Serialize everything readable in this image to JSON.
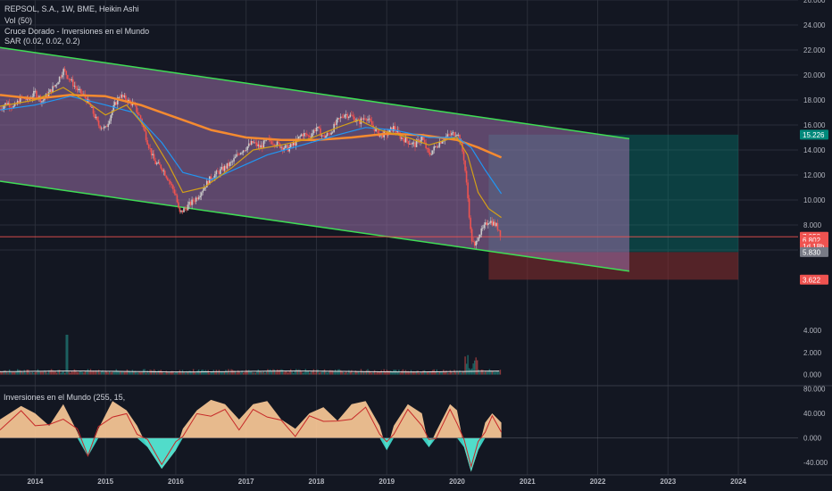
{
  "legend": {
    "symbol": "REPSOL, S.A., 1W, BME, Heikin Ashi",
    "vol": "Vol (50)",
    "indicator1": "Cruce Dorado - Inversiones en el Mundo",
    "indicator2": "SAR (0.02, 0.02, 0.2)",
    "oscillator": "Inversiones en el Mundo (255, 15,"
  },
  "colors": {
    "background": "#131722",
    "channel_line": "#3fdd55",
    "channel_fill": "#9a6fa8",
    "ema_fast": "#d4a017",
    "ema_mid": "#2196f3",
    "ema_slow": "#f58a30",
    "candle_up": "#c8c8c8",
    "candle_down": "#ef5350",
    "target_zone": "#00897b",
    "stop_zone": "#8b2e2e",
    "osc_positive": "#ffcc99",
    "osc_teal": "#40e0d0",
    "osc_green": "#4caf50"
  },
  "chart_data": {
    "type": "candlestick",
    "x_ticks": [
      "2014",
      "2015",
      "2016",
      "2017",
      "2018",
      "2019",
      "2020",
      "2021",
      "2022",
      "2023",
      "2024"
    ],
    "x_range": [
      2013.5,
      2024.85
    ],
    "price_axis": {
      "range": [
        3.0,
        26.0
      ],
      "ticks": [
        "26.000",
        "24.000",
        "22.000",
        "20.000",
        "18.000",
        "16.000",
        "14.000",
        "12.000",
        "10.000",
        "8.000",
        "6.000"
      ]
    },
    "price_tags": [
      {
        "label": "15.226",
        "value": 15.226,
        "color": "#00897b"
      },
      {
        "label": "7.058",
        "value": 7.058,
        "color": "#ef5350"
      },
      {
        "label": "6.802",
        "value": 6.802,
        "color": "#ef5350"
      },
      {
        "label": "1d 18h",
        "value": 6.28,
        "color": "#ef5350"
      },
      {
        "label": "5.830",
        "value": 5.83,
        "color": "#787b86"
      },
      {
        "label": "3.622",
        "value": 3.622,
        "color": "#ef5350"
      }
    ],
    "channel": {
      "upper": [
        [
          2013.5,
          22.2
        ],
        [
          2022.45,
          14.9
        ]
      ],
      "lower": [
        [
          2013.5,
          11.5
        ],
        [
          2022.45,
          4.3
        ]
      ]
    },
    "position": {
      "entry": 5.83,
      "target": 15.226,
      "stop": 3.622,
      "x_start": 2020.45,
      "x_end": 2024.0
    },
    "current_price_line": 7.058,
    "price_series": [
      [
        2013.5,
        17.3
      ],
      [
        2013.6,
        17.8
      ],
      [
        2013.7,
        17.4
      ],
      [
        2013.8,
        18.2
      ],
      [
        2013.9,
        18.0
      ],
      [
        2014.0,
        18.6
      ],
      [
        2014.1,
        17.9
      ],
      [
        2014.2,
        18.6
      ],
      [
        2014.3,
        19.3
      ],
      [
        2014.4,
        20.4
      ],
      [
        2014.5,
        19.6
      ],
      [
        2014.6,
        18.8
      ],
      [
        2014.7,
        18.3
      ],
      [
        2014.8,
        17.3
      ],
      [
        2014.9,
        16.0
      ],
      [
        2015.0,
        15.7
      ],
      [
        2015.1,
        17.2
      ],
      [
        2015.2,
        18.4
      ],
      [
        2015.3,
        18.0
      ],
      [
        2015.4,
        17.6
      ],
      [
        2015.5,
        16.5
      ],
      [
        2015.6,
        14.6
      ],
      [
        2015.7,
        13.0
      ],
      [
        2015.8,
        12.6
      ],
      [
        2015.9,
        11.6
      ],
      [
        2016.0,
        10.4
      ],
      [
        2016.05,
        8.9
      ],
      [
        2016.15,
        9.4
      ],
      [
        2016.3,
        10.2
      ],
      [
        2016.4,
        11.0
      ],
      [
        2016.5,
        11.8
      ],
      [
        2016.6,
        12.2
      ],
      [
        2016.7,
        12.6
      ],
      [
        2016.8,
        13.0
      ],
      [
        2016.9,
        13.8
      ],
      [
        2017.0,
        14.2
      ],
      [
        2017.1,
        14.6
      ],
      [
        2017.2,
        14.2
      ],
      [
        2017.3,
        14.8
      ],
      [
        2017.4,
        14.6
      ],
      [
        2017.5,
        14.3
      ],
      [
        2017.6,
        14.1
      ],
      [
        2017.7,
        14.6
      ],
      [
        2017.8,
        15.3
      ],
      [
        2017.9,
        15.1
      ],
      [
        2018.0,
        15.8
      ],
      [
        2018.1,
        15.0
      ],
      [
        2018.2,
        15.4
      ],
      [
        2018.3,
        16.3
      ],
      [
        2018.4,
        16.9
      ],
      [
        2018.5,
        16.7
      ],
      [
        2018.6,
        16.2
      ],
      [
        2018.7,
        16.7
      ],
      [
        2018.8,
        15.9
      ],
      [
        2018.9,
        15.2
      ],
      [
        2019.0,
        15.3
      ],
      [
        2019.1,
        15.8
      ],
      [
        2019.2,
        15.0
      ],
      [
        2019.3,
        14.7
      ],
      [
        2019.4,
        14.4
      ],
      [
        2019.5,
        15.0
      ],
      [
        2019.6,
        13.6
      ],
      [
        2019.7,
        14.3
      ],
      [
        2019.8,
        14.9
      ],
      [
        2019.9,
        15.2
      ],
      [
        2020.0,
        15.4
      ],
      [
        2020.05,
        14.7
      ],
      [
        2020.1,
        13.2
      ],
      [
        2020.15,
        10.4
      ],
      [
        2020.2,
        7.0
      ],
      [
        2020.25,
        6.2
      ],
      [
        2020.3,
        7.2
      ],
      [
        2020.35,
        7.5
      ],
      [
        2020.45,
        8.4
      ],
      [
        2020.55,
        8.0
      ],
      [
        2020.6,
        7.6
      ],
      [
        2020.63,
        7.06
      ]
    ],
    "ema_fast": [
      [
        2013.5,
        17.5
      ],
      [
        2014.0,
        18.0
      ],
      [
        2014.4,
        19.0
      ],
      [
        2014.8,
        17.6
      ],
      [
        2015.0,
        16.8
      ],
      [
        2015.3,
        17.6
      ],
      [
        2015.6,
        15.6
      ],
      [
        2015.9,
        12.8
      ],
      [
        2016.1,
        10.6
      ],
      [
        2016.4,
        11.0
      ],
      [
        2016.8,
        12.6
      ],
      [
        2017.1,
        14.0
      ],
      [
        2017.5,
        14.4
      ],
      [
        2017.9,
        14.9
      ],
      [
        2018.3,
        15.8
      ],
      [
        2018.6,
        16.4
      ],
      [
        2018.9,
        15.6
      ],
      [
        2019.3,
        15.0
      ],
      [
        2019.6,
        14.4
      ],
      [
        2019.9,
        14.9
      ],
      [
        2020.0,
        15.0
      ],
      [
        2020.15,
        13.6
      ],
      [
        2020.3,
        10.6
      ],
      [
        2020.45,
        9.3
      ],
      [
        2020.63,
        8.6
      ]
    ],
    "ema_mid": [
      [
        2013.5,
        17.2
      ],
      [
        2014.0,
        17.6
      ],
      [
        2014.5,
        18.3
      ],
      [
        2015.0,
        17.6
      ],
      [
        2015.4,
        17.0
      ],
      [
        2015.8,
        14.6
      ],
      [
        2016.1,
        12.2
      ],
      [
        2016.5,
        11.6
      ],
      [
        2016.9,
        12.6
      ],
      [
        2017.3,
        13.6
      ],
      [
        2017.8,
        14.4
      ],
      [
        2018.3,
        15.2
      ],
      [
        2018.7,
        15.8
      ],
      [
        2019.1,
        15.6
      ],
      [
        2019.6,
        15.0
      ],
      [
        2020.0,
        15.0
      ],
      [
        2020.2,
        14.2
      ],
      [
        2020.4,
        12.4
      ],
      [
        2020.63,
        10.5
      ]
    ],
    "ema_slow": [
      [
        2013.5,
        18.4
      ],
      [
        2014.0,
        18.1
      ],
      [
        2014.5,
        18.4
      ],
      [
        2015.0,
        18.3
      ],
      [
        2015.5,
        17.6
      ],
      [
        2016.0,
        16.6
      ],
      [
        2016.5,
        15.6
      ],
      [
        2017.0,
        15.0
      ],
      [
        2017.5,
        14.8
      ],
      [
        2018.0,
        14.8
      ],
      [
        2018.5,
        15.0
      ],
      [
        2019.0,
        15.3
      ],
      [
        2019.5,
        15.2
      ],
      [
        2020.0,
        14.8
      ],
      [
        2020.3,
        14.2
      ],
      [
        2020.63,
        13.4
      ]
    ],
    "volume_axis": {
      "range": [
        -1.0,
        4.0
      ],
      "ticks": [
        "4.000",
        "2.000",
        "0.000"
      ]
    },
    "oscillator_axis": {
      "range": [
        -60,
        85
      ],
      "ticks": [
        "80.000",
        "40.000",
        "0.000",
        "-40.000"
      ]
    },
    "oscillator_series": [
      [
        2013.5,
        30
      ],
      [
        2013.8,
        52
      ],
      [
        2014.0,
        40
      ],
      [
        2014.2,
        20
      ],
      [
        2014.4,
        55
      ],
      [
        2014.6,
        10
      ],
      [
        2014.75,
        -30
      ],
      [
        2014.9,
        15
      ],
      [
        2015.1,
        60
      ],
      [
        2015.3,
        45
      ],
      [
        2015.45,
        20
      ],
      [
        2015.6,
        -15
      ],
      [
        2015.8,
        -50
      ],
      [
        2016.0,
        -20
      ],
      [
        2016.1,
        15
      ],
      [
        2016.3,
        45
      ],
      [
        2016.5,
        62
      ],
      [
        2016.7,
        55
      ],
      [
        2016.9,
        30
      ],
      [
        2017.1,
        55
      ],
      [
        2017.3,
        60
      ],
      [
        2017.5,
        30
      ],
      [
        2017.7,
        15
      ],
      [
        2017.9,
        40
      ],
      [
        2018.1,
        50
      ],
      [
        2018.3,
        28
      ],
      [
        2018.5,
        55
      ],
      [
        2018.7,
        60
      ],
      [
        2018.9,
        20
      ],
      [
        2019.0,
        -20
      ],
      [
        2019.1,
        20
      ],
      [
        2019.3,
        55
      ],
      [
        2019.5,
        40
      ],
      [
        2019.6,
        -15
      ],
      [
        2019.7,
        10
      ],
      [
        2019.9,
        55
      ],
      [
        2020.0,
        45
      ],
      [
        2020.1,
        -15
      ],
      [
        2020.2,
        -55
      ],
      [
        2020.3,
        -20
      ],
      [
        2020.4,
        25
      ],
      [
        2020.5,
        40
      ],
      [
        2020.63,
        25
      ]
    ]
  }
}
